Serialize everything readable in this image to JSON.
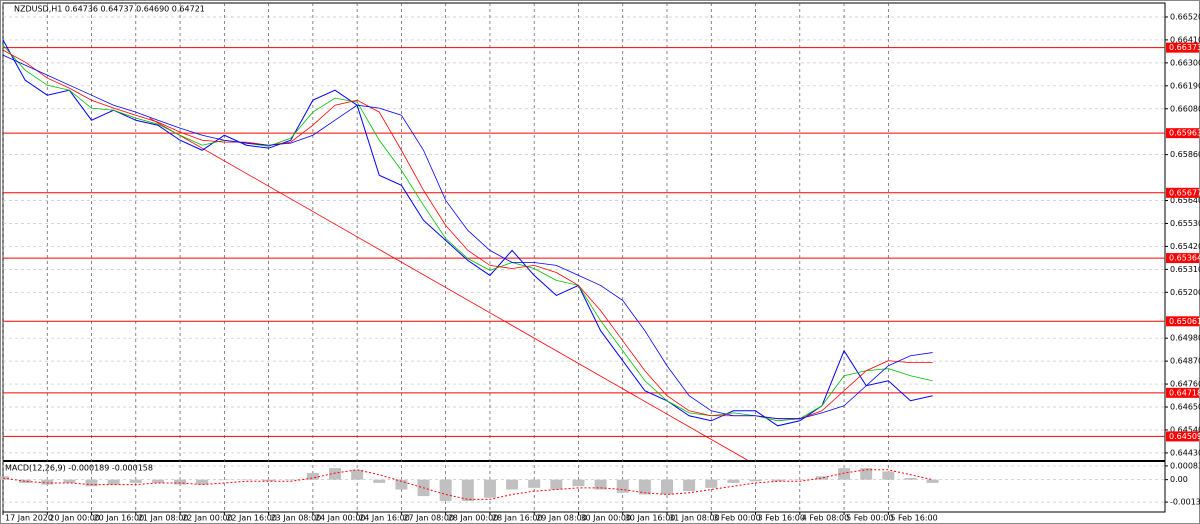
{
  "chart_data": [
    {
      "type": "line",
      "title": "NZDUSD,H1  0.64736 0.64737 0.64690 0.64721",
      "x": [
        0,
        8,
        16,
        24,
        32,
        40,
        48,
        56,
        64,
        72,
        80,
        88,
        96,
        104,
        112,
        120,
        128,
        136,
        144,
        152,
        160,
        168,
        176,
        184,
        192,
        200,
        208,
        216,
        224,
        232,
        240,
        248,
        256,
        264,
        272,
        280,
        288,
        296,
        304,
        312,
        320,
        328,
        336
      ],
      "series": [
        {
          "color": "#0000ff",
          "width": 1,
          "values": [
            0.6641,
            0.66217,
            0.66145,
            0.66169,
            0.66025,
            0.66073,
            0.66025,
            0.66001,
            0.65929,
            0.65881,
            0.65953,
            0.65905,
            0.65891,
            0.65929,
            0.66121,
            0.66169,
            0.66097,
            0.65761,
            0.65713,
            0.65545,
            0.65449,
            0.65353,
            0.65281,
            0.65401,
            0.65281,
            0.65185,
            0.65233,
            0.65016,
            0.64872,
            0.64728,
            0.6468,
            0.64608,
            0.64584,
            0.64632,
            0.64632,
            0.6456,
            0.64584,
            0.64656,
            0.6492,
            0.64752,
            0.64776,
            0.6468,
            0.64704
          ]
        },
        {
          "color": "#00c000",
          "width": 0.8,
          "values": [
            0.66385,
            0.66265,
            0.66193,
            0.66169,
            0.66083,
            0.66073,
            0.66035,
            0.66006,
            0.65953,
            0.65905,
            0.65929,
            0.65915,
            0.659,
            0.65939,
            0.66064,
            0.66131,
            0.66112,
            0.65929,
            0.65785,
            0.65617,
            0.65458,
            0.65362,
            0.65305,
            0.65343,
            0.65314,
            0.65257,
            0.65233,
            0.65064,
            0.6492,
            0.64776,
            0.6468,
            0.64622,
            0.64608,
            0.64622,
            0.64608,
            0.64584,
            0.64594,
            0.64656,
            0.648,
            0.64824,
            0.64834,
            0.648,
            0.64776
          ]
        },
        {
          "color": "#ff0000",
          "width": 0.8,
          "values": [
            0.66361,
            0.66304,
            0.66227,
            0.66179,
            0.66121,
            0.66083,
            0.66049,
            0.66016,
            0.65968,
            0.65929,
            0.6592,
            0.6592,
            0.65905,
            0.6592,
            0.66001,
            0.66097,
            0.66121,
            0.66064,
            0.65881,
            0.65689,
            0.65521,
            0.65401,
            0.65329,
            0.65314,
            0.65329,
            0.65295,
            0.65233,
            0.65112,
            0.64968,
            0.64824,
            0.64704,
            0.64632,
            0.64608,
            0.64608,
            0.64608,
            0.64594,
            0.64594,
            0.64632,
            0.64728,
            0.64824,
            0.64872,
            0.64863,
            0.64863
          ]
        },
        {
          "color": "#0000ff",
          "width": 0.8,
          "values": [
            0.66337,
            0.66289,
            0.66241,
            0.66193,
            0.66145,
            0.66097,
            0.66064,
            0.66025,
            0.65987,
            0.65953,
            0.65929,
            0.65915,
            0.65905,
            0.65915,
            0.65953,
            0.66025,
            0.66097,
            0.66083,
            0.66049,
            0.65881,
            0.65641,
            0.65497,
            0.65401,
            0.65343,
            0.65343,
            0.65329,
            0.65281,
            0.65233,
            0.65161,
            0.65016,
            0.64848,
            0.64704,
            0.64632,
            0.64608,
            0.64608,
            0.64594,
            0.64594,
            0.64622,
            0.64656,
            0.64752,
            0.64848,
            0.64896,
            0.64911
          ]
        }
      ],
      "xlim": [
        0,
        420
      ],
      "xticks": [
        {
          "value": 0,
          "label": "17 Jan 2020"
        },
        {
          "value": 16,
          "label": "20 Jan 00:00"
        },
        {
          "value": 32,
          "label": "20 Jan 16:00"
        },
        {
          "value": 48,
          "label": "21 Jan 08:00"
        },
        {
          "value": 64,
          "label": "22 Jan 00:00"
        },
        {
          "value": 80,
          "label": "22 Jan 16:00"
        },
        {
          "value": 96,
          "label": "23 Jan 08:00"
        },
        {
          "value": 112,
          "label": "24 Jan 00:00"
        },
        {
          "value": 128,
          "label": "24 Jan 16:00"
        },
        {
          "value": 144,
          "label": "27 Jan 08:00"
        },
        {
          "value": 160,
          "label": "28 Jan 00:00"
        },
        {
          "value": 176,
          "label": "28 Jan 16:00"
        },
        {
          "value": 192,
          "label": "29 Jan 08:00"
        },
        {
          "value": 208,
          "label": "30 Jan 00:00"
        },
        {
          "value": 224,
          "label": "30 Jan 16:00"
        },
        {
          "value": 240,
          "label": "31 Jan 08:00"
        },
        {
          "value": 256,
          "label": "3 Feb 00:00"
        },
        {
          "value": 272,
          "label": "3 Feb 16:00"
        },
        {
          "value": 288,
          "label": "4 Feb 08:00"
        },
        {
          "value": 304,
          "label": "5 Feb 00:00"
        },
        {
          "value": 320,
          "label": "5 Feb 16:00"
        }
      ],
      "ylim": [
        0.64396,
        0.66587
      ],
      "yticks": [
        {
          "value": 0.6652,
          "label": "0.66520"
        },
        {
          "value": 0.6641,
          "label": "0.66410"
        },
        {
          "value": 0.663,
          "label": "0.66300"
        },
        {
          "value": 0.6619,
          "label": "0.66190"
        },
        {
          "value": 0.6608,
          "label": "0.66080"
        },
        {
          "value": 0.6586,
          "label": "0.65860"
        },
        {
          "value": 0.6564,
          "label": "0.65640"
        },
        {
          "value": 0.6553,
          "label": "0.65530"
        },
        {
          "value": 0.6542,
          "label": "0.65420"
        },
        {
          "value": 0.6531,
          "label": "0.65310"
        },
        {
          "value": 0.652,
          "label": "0.65200"
        },
        {
          "value": 0.6498,
          "label": "0.64980"
        },
        {
          "value": 0.6487,
          "label": "0.64870"
        },
        {
          "value": 0.6476,
          "label": "0.64760"
        },
        {
          "value": 0.6465,
          "label": "0.64650"
        },
        {
          "value": 0.6454,
          "label": "0.64540"
        },
        {
          "value": 0.6443,
          "label": "0.64430"
        }
      ],
      "levels": [
        0.66373,
        0.65963,
        0.65677,
        0.65364,
        0.65061,
        0.64718,
        0.64509
      ],
      "level_color": "#ff0000",
      "trend_line": {
        "x": [
          53,
          269
        ],
        "y": [
          0.66035,
          0.64396
        ],
        "color": "#ff0000"
      },
      "grid": true
    },
    {
      "type": "bar",
      "title": "MACD(12,26,9) -0.000189 -0.000158",
      "x": [
        0,
        8,
        16,
        24,
        32,
        40,
        48,
        56,
        64,
        72,
        80,
        88,
        96,
        104,
        112,
        120,
        128,
        136,
        144,
        152,
        160,
        168,
        176,
        184,
        192,
        200,
        208,
        216,
        224,
        232,
        240,
        248,
        256,
        264,
        272,
        280,
        288,
        296,
        304,
        312,
        320,
        328,
        336
      ],
      "series": [
        {
          "type": "bar",
          "color": "#c0c0c0",
          "values": [
            0.0002,
            -0.0002,
            -0.0003,
            -0.0002,
            -0.0004,
            -0.0003,
            -0.0002,
            -0.0002,
            -0.0003,
            -0.0003,
            0.0,
            0.0,
            -0.0001,
            0.0,
            0.0004,
            0.0007,
            0.0006,
            -0.0002,
            -0.0006,
            -0.001,
            -0.0013,
            -0.0013,
            -0.0011,
            -0.0006,
            -0.0005,
            -0.0006,
            -0.0004,
            -0.0006,
            -0.0008,
            -0.0009,
            -0.0009,
            -0.0007,
            -0.0005,
            -0.0002,
            -0.0001,
            -0.0001,
            0.0,
            0.0002,
            0.0007,
            0.0007,
            0.0005,
            0.0001,
            -0.0002
          ]
        },
        {
          "type": "line",
          "style": "dashed",
          "color": "#ff0000",
          "values": [
            0.0001,
            -0.0001,
            -0.0002,
            -0.0002,
            -0.0003,
            -0.0003,
            -0.0003,
            -0.0002,
            -0.0002,
            -0.0003,
            -0.0002,
            -0.0001,
            -0.0001,
            -0.0001,
            0.0001,
            0.0004,
            0.0006,
            0.0003,
            -0.0001,
            -0.0005,
            -0.0009,
            -0.0012,
            -0.0012,
            -0.0009,
            -0.0007,
            -0.0006,
            -0.0005,
            -0.0005,
            -0.0006,
            -0.0008,
            -0.0009,
            -0.0008,
            -0.0006,
            -0.0004,
            -0.0002,
            -0.0001,
            -0.0001,
            0.0001,
            0.0004,
            0.0006,
            0.0006,
            0.0003,
            0.0
          ]
        }
      ],
      "xlim": [
        0,
        420
      ],
      "ylim": [
        -0.001968,
        0.001074
      ],
      "yticks": [
        0.000835,
        {
          "value": 0,
          "label": "0.00"
        },
        -0.001366
      ],
      "grid": true
    }
  ]
}
